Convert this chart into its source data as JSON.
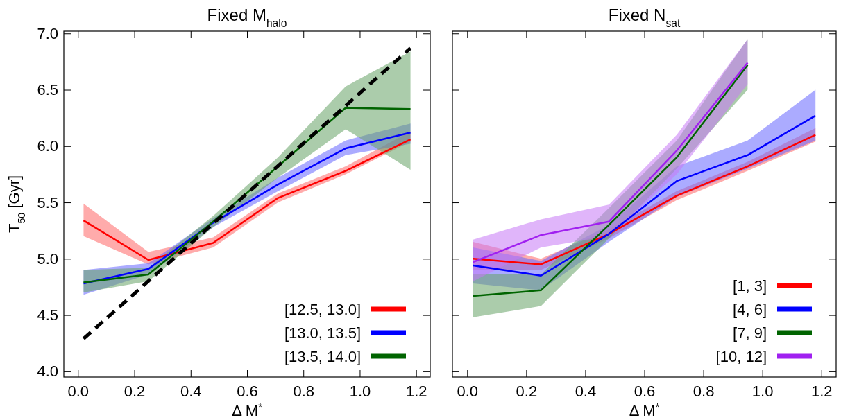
{
  "chart_data": [
    {
      "type": "line",
      "title": "Fixed M$_{halo}$",
      "xlabel": "Δ M$^{*}$",
      "ylabel": "T$_{50}$ [Gyr]",
      "x": [
        0.02,
        0.25,
        0.48,
        0.71,
        0.95,
        1.18
      ],
      "xlim": [
        -0.05,
        1.25
      ],
      "ylim": [
        3.95,
        7.02
      ],
      "xticks": [
        {
          "value": 0,
          "label": "0.0"
        },
        {
          "value": 0.2,
          "label": "0.2"
        },
        {
          "value": 0.4,
          "label": "0.4"
        },
        {
          "value": 0.6,
          "label": "0.6"
        },
        {
          "value": 0.8,
          "label": "0.8"
        },
        {
          "value": 1,
          "label": "1.0"
        },
        {
          "value": 1.2,
          "label": "1.2"
        }
      ],
      "yticks": [
        {
          "value": 4,
          "label": "4.0"
        },
        {
          "value": 4.5,
          "label": "4.5"
        },
        {
          "value": 5,
          "label": "5.0"
        },
        {
          "value": 5.5,
          "label": "5.5"
        },
        {
          "value": 6,
          "label": "6.0"
        },
        {
          "value": 6.5,
          "label": "6.5"
        },
        {
          "value": 7,
          "label": "7.0"
        }
      ],
      "legend": "bottom right",
      "line_style": "solid",
      "grid": false,
      "series": [
        {
          "name": "[12.5, 13.0]",
          "color": "#ff0000",
          "values": [
            5.34,
            4.99,
            5.14,
            5.54,
            5.78,
            6.06
          ],
          "lower": [
            5.2,
            4.95,
            5.1,
            5.5,
            5.75,
            6.04
          ],
          "upper": [
            5.49,
            5.06,
            5.19,
            5.58,
            5.82,
            6.13
          ]
        },
        {
          "name": "[13.0, 13.5]",
          "color": "#0000ff",
          "values": [
            4.78,
            4.91,
            5.32,
            5.66,
            5.98,
            6.12
          ],
          "lower": [
            4.68,
            4.86,
            5.28,
            5.6,
            5.92,
            6.02
          ],
          "upper": [
            4.9,
            4.96,
            5.36,
            5.72,
            6.05,
            6.2
          ]
        },
        {
          "name": "[13.5, 14.0]",
          "color": "#006400",
          "values": [
            4.79,
            4.86,
            5.33,
            5.82,
            6.34,
            6.33
          ],
          "lower": [
            4.7,
            4.8,
            5.28,
            5.72,
            6.15,
            5.79
          ],
          "upper": [
            4.9,
            4.92,
            5.38,
            5.9,
            6.53,
            6.84
          ]
        },
        {
          "color": "#000000",
          "line_style": "dashed",
          "x": [
            0.02,
            1.18
          ],
          "values": [
            4.29,
            6.87
          ]
        }
      ]
    },
    {
      "type": "line",
      "title": "Fixed N$_{sat}$",
      "xlabel": "Δ M$^{*}$",
      "x": [
        0.02,
        0.25,
        0.48,
        0.71,
        0.95,
        1.18
      ],
      "xlim": [
        -0.05,
        1.25
      ],
      "ylim": [
        3.95,
        7.02
      ],
      "xticks": [
        {
          "value": 0,
          "label": "0.0"
        },
        {
          "value": 0.2,
          "label": "0.2"
        },
        {
          "value": 0.4,
          "label": "0.4"
        },
        {
          "value": 0.6,
          "label": "0.6"
        },
        {
          "value": 0.8,
          "label": "0.8"
        },
        {
          "value": 1,
          "label": "1.0"
        },
        {
          "value": 1.2,
          "label": "1.2"
        }
      ],
      "yticks": [
        {
          "value": 4,
          "label": null
        },
        {
          "value": 4.5,
          "label": null
        },
        {
          "value": 5,
          "label": null
        },
        {
          "value": 5.5,
          "label": null
        },
        {
          "value": 6,
          "label": null
        },
        {
          "value": 6.5,
          "label": null
        },
        {
          "value": 7,
          "label": null
        }
      ],
      "tick_labels": "x",
      "legend": "bottom right",
      "line_style": "solid",
      "grid": false,
      "series": [
        {
          "name": "[1, 3]",
          "color": "#ff0000",
          "values": [
            5.0,
            4.95,
            5.22,
            5.56,
            5.82,
            6.1
          ],
          "lower": [
            4.9,
            4.9,
            5.18,
            5.52,
            5.78,
            6.04
          ],
          "upper": [
            5.15,
            5.0,
            5.26,
            5.6,
            5.86,
            6.16
          ]
        },
        {
          "name": "[4, 6]",
          "color": "#0000ff",
          "values": [
            4.94,
            4.85,
            5.22,
            5.69,
            5.92,
            6.27
          ],
          "lower": [
            4.78,
            4.72,
            5.15,
            5.55,
            5.8,
            6.05
          ],
          "upper": [
            5.1,
            4.98,
            5.3,
            5.82,
            6.05,
            6.5
          ]
        },
        {
          "name": "[7, 9]",
          "color": "#006400",
          "x": [
            0.02,
            0.25,
            0.48,
            0.71,
            0.95
          ],
          "values": [
            4.67,
            4.72,
            5.3,
            5.9,
            6.72
          ],
          "lower": [
            4.48,
            4.58,
            5.18,
            5.8,
            6.5
          ],
          "upper": [
            4.86,
            4.86,
            5.45,
            6.05,
            6.95
          ]
        },
        {
          "name": "[10, 12]",
          "color": "#a020f0",
          "x": [
            0.02,
            0.25,
            0.48,
            0.71,
            0.95
          ],
          "values": [
            4.97,
            5.21,
            5.33,
            5.96,
            6.74
          ],
          "lower": [
            4.8,
            5.1,
            5.2,
            5.75,
            6.55
          ],
          "upper": [
            5.17,
            5.35,
            5.48,
            6.1,
            6.95
          ]
        }
      ]
    }
  ]
}
